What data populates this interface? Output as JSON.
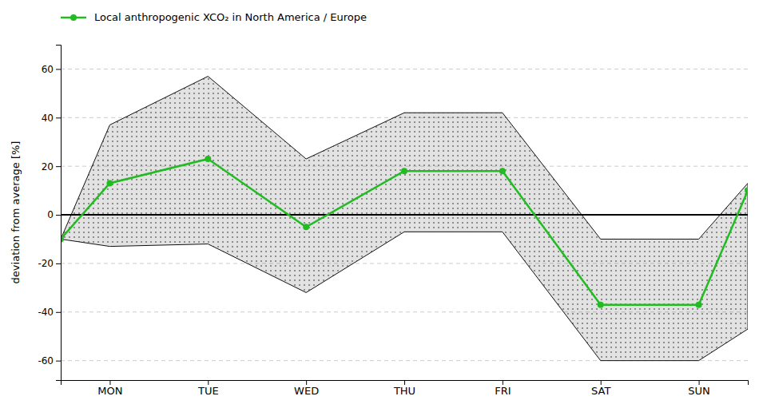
{
  "chart_data": {
    "type": "line",
    "y_label": "deviation from average [%]",
    "xlim": [
      0,
      14
    ],
    "xticks": [
      {
        "value": 1,
        "label": "MON"
      },
      {
        "value": 3,
        "label": "TUE"
      },
      {
        "value": 5,
        "label": "WED"
      },
      {
        "value": 7,
        "label": "THU"
      },
      {
        "value": 9,
        "label": "FRI"
      },
      {
        "value": 11,
        "label": "SAT"
      },
      {
        "value": 13,
        "label": "SUN"
      }
    ],
    "ylim": [
      -68,
      70
    ],
    "yticks": [
      -60,
      -40,
      -20,
      0,
      20,
      40,
      60
    ],
    "grid": true,
    "legend": "upper left",
    "series": [
      {
        "name": "Local anthropogenic XCO₂ in North America / Europe",
        "type": "line",
        "color": "#22bb22",
        "marker": "circle",
        "x": [
          0,
          1,
          3,
          5,
          7,
          9,
          11,
          13,
          14
        ],
        "values": [
          -10,
          13,
          23,
          -5,
          18,
          18,
          -37,
          -37,
          10
        ]
      }
    ],
    "band": {
      "x": [
        0,
        1,
        3,
        5,
        7,
        9,
        11,
        13,
        14
      ],
      "upper": [
        -10,
        37,
        57,
        23,
        42,
        42,
        -10,
        -10,
        13
      ],
      "lower": [
        -10,
        -13,
        -12,
        -32,
        -7,
        -7,
        -60,
        -60,
        -47
      ],
      "color": "#111111"
    }
  }
}
